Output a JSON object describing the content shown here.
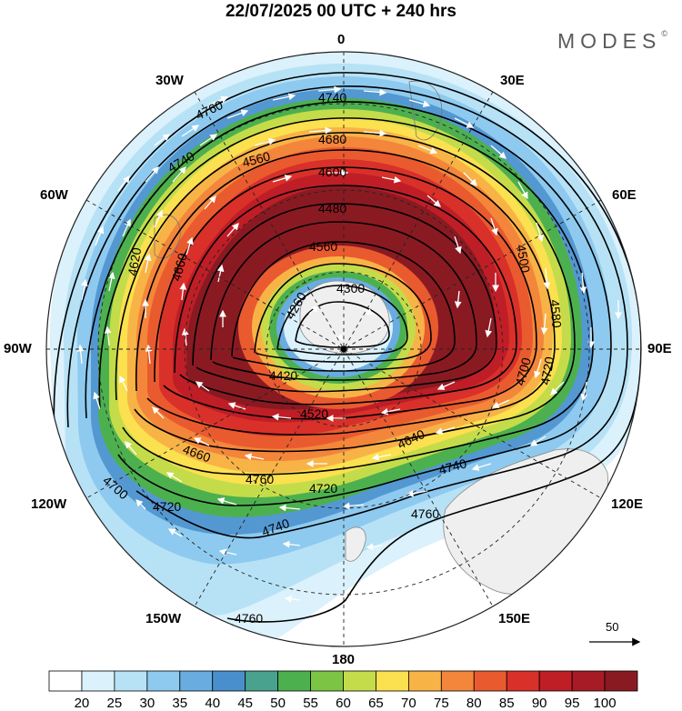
{
  "header": {
    "title": "22/07/2025  00 UTC  + 240 hrs",
    "brand": "MODES",
    "brand_mark": "©"
  },
  "meridian_labels": {
    "m0": "0",
    "m30e": "30E",
    "m60e": "60E",
    "m90e": "90E",
    "m120e": "120E",
    "m150e": "150E",
    "m180": "180",
    "m150w": "150W",
    "m120w": "120W",
    "m90w": "90W",
    "m60w": "60W",
    "m30w": "30W"
  },
  "reference_vector": {
    "label": "50"
  },
  "colorbar": {
    "levels": [
      "20",
      "25",
      "30",
      "35",
      "40",
      "45",
      "50",
      "55",
      "60",
      "65",
      "70",
      "75",
      "80",
      "85",
      "90",
      "95",
      "100"
    ],
    "colors": [
      "#ffffff",
      "#dbf1fc",
      "#b7e2f6",
      "#8ecaef",
      "#69ace0",
      "#4a8fcd",
      "#48a28e",
      "#4db04f",
      "#7cc544",
      "#c4dc4a",
      "#fbe04f",
      "#f8b347",
      "#f3863a",
      "#ea5a2f",
      "#d9302a",
      "#bf1e27",
      "#a61b25",
      "#8a1a22"
    ]
  },
  "contours": {
    "labels": [
      "4740",
      "4760",
      "4680",
      "4740",
      "4560",
      "4600",
      "4480",
      "4620",
      "4660",
      "4560",
      "4500",
      "4260",
      "4300",
      "4420",
      "4520",
      "4580",
      "4700",
      "4720",
      "4660",
      "4640",
      "4700",
      "4760",
      "4720",
      "4740",
      "4760",
      "4720",
      "4740",
      "4760"
    ]
  }
}
